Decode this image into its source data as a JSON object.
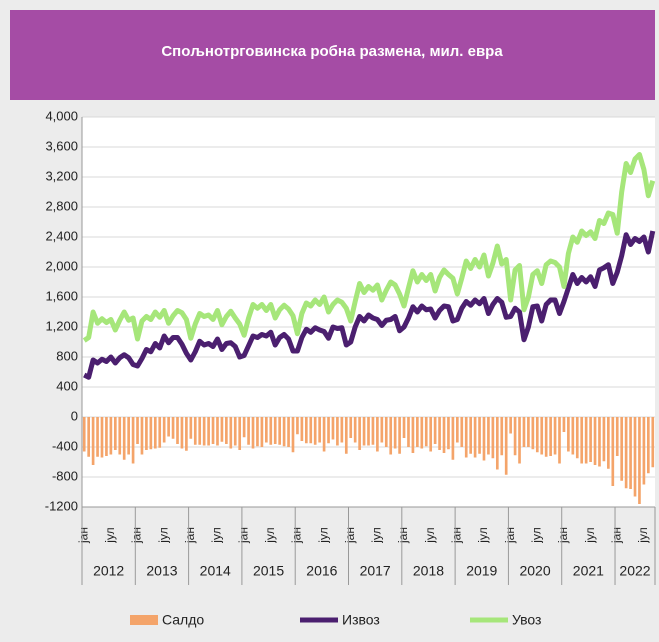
{
  "chart_data": {
    "type": "combo",
    "title": "Спољнотрговинска робна размена, мил. евра",
    "categories": [
      "јан",
      null,
      null,
      null,
      null,
      null,
      "јул",
      null,
      null,
      null,
      null,
      null,
      "јан",
      null,
      null,
      null,
      null,
      null,
      "јул",
      null,
      null,
      null,
      null,
      null,
      "јан",
      null,
      null,
      null,
      null,
      null,
      "јул",
      null,
      null,
      null,
      null,
      null,
      "јан",
      null,
      null,
      null,
      null,
      null,
      "јул",
      null,
      null,
      null,
      null,
      null,
      "јан",
      null,
      null,
      null,
      null,
      null,
      "јул",
      null,
      null,
      null,
      null,
      null,
      "јан",
      null,
      null,
      null,
      null,
      null,
      "јул",
      null,
      null,
      null,
      null,
      null,
      "јан",
      null,
      null,
      null,
      null,
      null,
      "јул",
      null,
      null,
      null,
      null,
      null,
      "јан",
      null,
      null,
      null,
      null,
      null,
      "јул",
      null,
      null,
      null,
      null,
      null,
      "јан",
      null,
      null,
      null,
      null,
      null,
      "јул",
      null,
      null,
      null,
      null,
      null,
      "јан",
      null,
      null,
      null,
      null,
      null,
      "јул",
      null,
      null,
      null,
      null,
      null,
      "јан",
      null,
      null,
      null,
      null,
      null,
      "јул",
      null,
      null
    ],
    "years": [
      "2012",
      "2013",
      "2014",
      "2015",
      "2016",
      "2017",
      "2018",
      "2019",
      "2020",
      "2021",
      "2022"
    ],
    "ylim": [
      -1200,
      4000
    ],
    "yticks": [
      -1200,
      -800,
      -400,
      0,
      400,
      800,
      {
        "value": 1200,
        "label": "1,200"
      },
      {
        "value": 1600,
        "label": "1,600"
      },
      {
        "value": 2000,
        "label": "2,000"
      },
      {
        "value": 2400,
        "label": "2,400"
      },
      {
        "value": 2800,
        "label": "2,800"
      },
      {
        "value": 3200,
        "label": "3,200"
      },
      {
        "value": 3600,
        "label": "3,600"
      },
      {
        "value": 4000,
        "label": "4,000"
      }
    ],
    "grid": true,
    "legend": "bottom",
    "series": [
      {
        "name": "Салдо",
        "type": "bar",
        "color": "#f4a46a",
        "values": [
          -460,
          -530,
          -640,
          -530,
          -540,
          -520,
          -500,
          -440,
          -500,
          -570,
          -500,
          -620,
          -360,
          -500,
          -440,
          -430,
          -420,
          -410,
          -340,
          -260,
          -290,
          -360,
          -420,
          -450,
          -290,
          -370,
          -370,
          -380,
          -380,
          -360,
          -380,
          -330,
          -360,
          -420,
          -380,
          -440,
          -270,
          -370,
          -420,
          -390,
          -400,
          -340,
          -370,
          -360,
          -370,
          -390,
          -400,
          -470,
          -230,
          -320,
          -350,
          -350,
          -370,
          -340,
          -460,
          -350,
          -300,
          -380,
          -340,
          -490,
          -280,
          -340,
          -440,
          -380,
          -380,
          -370,
          -460,
          -340,
          -400,
          -500,
          -420,
          -490,
          -280,
          -400,
          -480,
          -400,
          -420,
          -390,
          -460,
          -360,
          -440,
          -480,
          -430,
          -570,
          -340,
          -400,
          -540,
          -490,
          -540,
          -490,
          -580,
          -500,
          -550,
          -700,
          -510,
          -770,
          -220,
          -510,
          -620,
          -400,
          -400,
          -430,
          -470,
          -500,
          -530,
          -520,
          -500,
          -620,
          -200,
          -460,
          -500,
          -550,
          -620,
          -620,
          -600,
          -640,
          -660,
          -590,
          -690,
          -920,
          -520,
          -850,
          -950,
          -960,
          -1060,
          -1160,
          -900,
          -750,
          -670
        ]
      },
      {
        "name": "Извоз",
        "type": "line",
        "color": "#4b1f6f",
        "values": [
          560,
          530,
          760,
          720,
          770,
          740,
          800,
          720,
          790,
          830,
          790,
          700,
          680,
          780,
          900,
          870,
          980,
          920,
          1080,
          990,
          1060,
          1060,
          970,
          850,
          760,
          870,
          1010,
          960,
          980,
          940,
          1040,
          900,
          980,
          990,
          940,
          800,
          820,
          950,
          1080,
          1060,
          1100,
          1080,
          1130,
          960,
          1060,
          1100,
          1040,
          880,
          880,
          1060,
          1170,
          1130,
          1190,
          1160,
          1140,
          1050,
          1200,
          1180,
          1190,
          960,
          1000,
          1200,
          1340,
          1280,
          1360,
          1320,
          1300,
          1220,
          1290,
          1300,
          1340,
          1150,
          1200,
          1320,
          1470,
          1400,
          1480,
          1430,
          1440,
          1320,
          1420,
          1480,
          1470,
          1280,
          1300,
          1450,
          1540,
          1490,
          1560,
          1510,
          1580,
          1380,
          1500,
          1580,
          1530,
          1330,
          1340,
          1450,
          1400,
          1030,
          1200,
          1470,
          1480,
          1280,
          1500,
          1560,
          1560,
          1380,
          1540,
          1720,
          1900,
          1780,
          1860,
          1800,
          1870,
          1740,
          1960,
          1990,
          2030,
          1780,
          1930,
          2150,
          2430,
          2300,
          2380,
          2340,
          2400,
          2200,
          2480
        ]
      },
      {
        "name": "Увоз",
        "type": "line",
        "color": "#a6e67a",
        "values": [
          1020,
          1060,
          1400,
          1250,
          1310,
          1260,
          1300,
          1160,
          1290,
          1400,
          1290,
          1320,
          1040,
          1280,
          1340,
          1300,
          1400,
          1330,
          1420,
          1250,
          1350,
          1420,
          1390,
          1300,
          1050,
          1240,
          1380,
          1340,
          1360,
          1300,
          1420,
          1230,
          1340,
          1410,
          1320,
          1240,
          1090,
          1320,
          1500,
          1450,
          1500,
          1420,
          1500,
          1320,
          1430,
          1490,
          1440,
          1350,
          1110,
          1380,
          1520,
          1480,
          1560,
          1500,
          1600,
          1400,
          1500,
          1560,
          1530,
          1450,
          1280,
          1540,
          1780,
          1660,
          1740,
          1690,
          1760,
          1560,
          1690,
          1800,
          1760,
          1640,
          1480,
          1720,
          1950,
          1800,
          1900,
          1820,
          1900,
          1680,
          1860,
          1960,
          1900,
          1850,
          1640,
          1850,
          2080,
          1980,
          2100,
          2000,
          2160,
          1880,
          2050,
          2280,
          2040,
          2100,
          1560,
          1960,
          2020,
          1430,
          1600,
          1900,
          1950,
          1780,
          2030,
          2080,
          2060,
          2000,
          1740,
          2180,
          2400,
          2330,
          2480,
          2420,
          2470,
          2380,
          2620,
          2580,
          2720,
          2700,
          2450,
          3000,
          3380,
          3260,
          3440,
          3500,
          3300,
          2950,
          3150
        ]
      }
    ]
  }
}
